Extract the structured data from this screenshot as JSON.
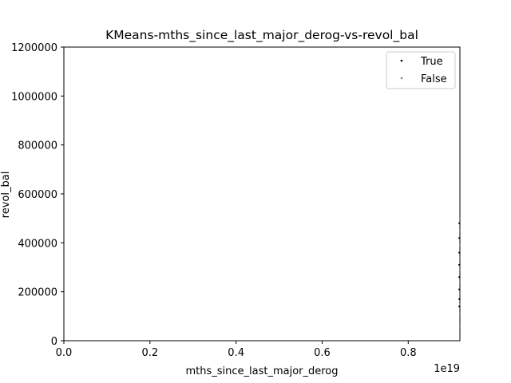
{
  "chart_data": {
    "type": "scatter",
    "title": "KMeans-mths_since_last_major_derog-vs-revol_bal",
    "xlabel": "mths_since_last_major_derog",
    "ylabel": "revol_bal",
    "x_offset_label": "1e19",
    "xlim": [
      0,
      0.92
    ],
    "ylim": [
      0,
      1200000
    ],
    "x_ticks": [
      0.0,
      0.2,
      0.4,
      0.6,
      0.8
    ],
    "x_tick_labels": [
      "0.0",
      "0.2",
      "0.4",
      "0.6",
      "0.8"
    ],
    "y_ticks": [
      0,
      200000,
      400000,
      600000,
      800000,
      1000000,
      1200000
    ],
    "y_tick_labels": [
      "0",
      "200000",
      "400000",
      "600000",
      "800000",
      "1000000",
      "1200000"
    ],
    "legend_position": "top-right",
    "series": [
      {
        "name": "True",
        "color": "#000000",
        "x": [
          0.92,
          0.92,
          0.92,
          0.92,
          0.92,
          0.92,
          0.92,
          0.92
        ],
        "y": [
          480000,
          420000,
          360000,
          310000,
          260000,
          210000,
          170000,
          140000
        ]
      },
      {
        "name": "False",
        "color": "#808080",
        "x": [
          0.92,
          0.92,
          0.92,
          0.92,
          0.92,
          0.92,
          0.92,
          0.92,
          0.92,
          0.92
        ],
        "y": [
          500000,
          450000,
          390000,
          340000,
          290000,
          240000,
          190000,
          150000,
          110000,
          60000
        ]
      }
    ]
  }
}
